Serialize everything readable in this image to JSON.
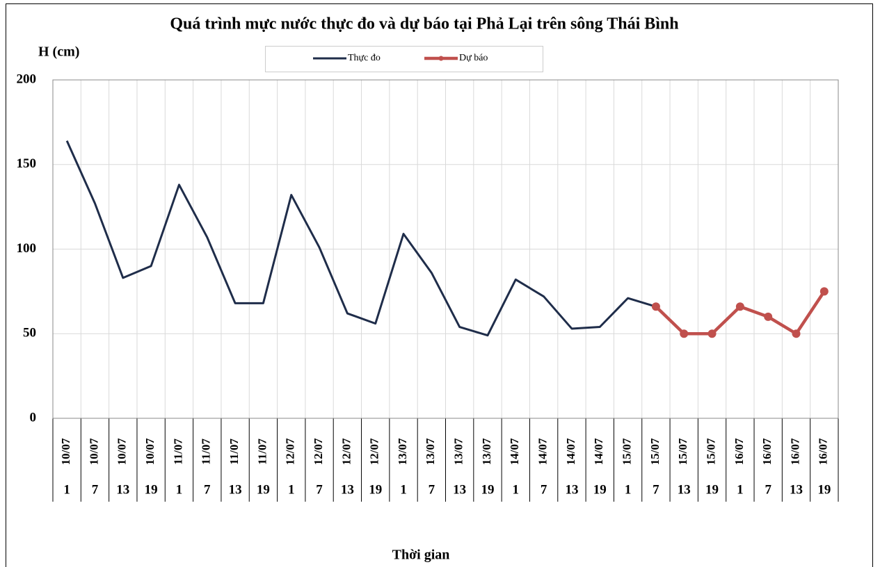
{
  "chart_data": {
    "type": "line",
    "title": "Quá trình  mực nước thực đo và dự báo tại Phả Lại trên sông Thái Bình",
    "y_label": "H (cm)",
    "x_label": "Thời gian",
    "categories": [
      [
        "10/07",
        "1"
      ],
      [
        "10/07",
        "7"
      ],
      [
        "10/07",
        "13"
      ],
      [
        "10/07",
        "19"
      ],
      [
        "11/07",
        "1"
      ],
      [
        "11/07",
        "7"
      ],
      [
        "11/07",
        "13"
      ],
      [
        "11/07",
        "19"
      ],
      [
        "12/07",
        "1"
      ],
      [
        "12/07",
        "7"
      ],
      [
        "12/07",
        "13"
      ],
      [
        "12/07",
        "19"
      ],
      [
        "13/07",
        "1"
      ],
      [
        "13/07",
        "7"
      ],
      [
        "13/07",
        "13"
      ],
      [
        "13/07",
        "19"
      ],
      [
        "14/07",
        "1"
      ],
      [
        "14/07",
        "7"
      ],
      [
        "14/07",
        "13"
      ],
      [
        "14/07",
        "19"
      ],
      [
        "15/07",
        "1"
      ],
      [
        "15/07",
        "7"
      ],
      [
        "15/07",
        "13"
      ],
      [
        "15/07",
        "19"
      ],
      [
        "16/07",
        "1"
      ],
      [
        "16/07",
        "7"
      ],
      [
        "16/07",
        "13"
      ],
      [
        "16/07",
        "19"
      ]
    ],
    "series": [
      {
        "name": "Thực đo",
        "color": "#1f2d4a",
        "markers": false,
        "values": [
          164,
          127,
          83,
          90,
          138,
          107,
          68,
          68,
          132,
          101,
          62,
          56,
          109,
          86,
          54,
          49,
          82,
          72,
          53,
          54,
          71,
          66,
          null,
          null,
          null,
          null,
          null,
          null
        ]
      },
      {
        "name": "Dự báo",
        "color": "#c0504d",
        "markers": true,
        "values": [
          null,
          null,
          null,
          null,
          null,
          null,
          null,
          null,
          null,
          null,
          null,
          null,
          null,
          null,
          null,
          null,
          null,
          null,
          null,
          null,
          null,
          66,
          50,
          50,
          66,
          60,
          50,
          75
        ]
      }
    ],
    "ylim": [
      0,
      200
    ],
    "yticks": [
      0,
      50,
      100,
      150,
      200
    ],
    "grid": true
  }
}
